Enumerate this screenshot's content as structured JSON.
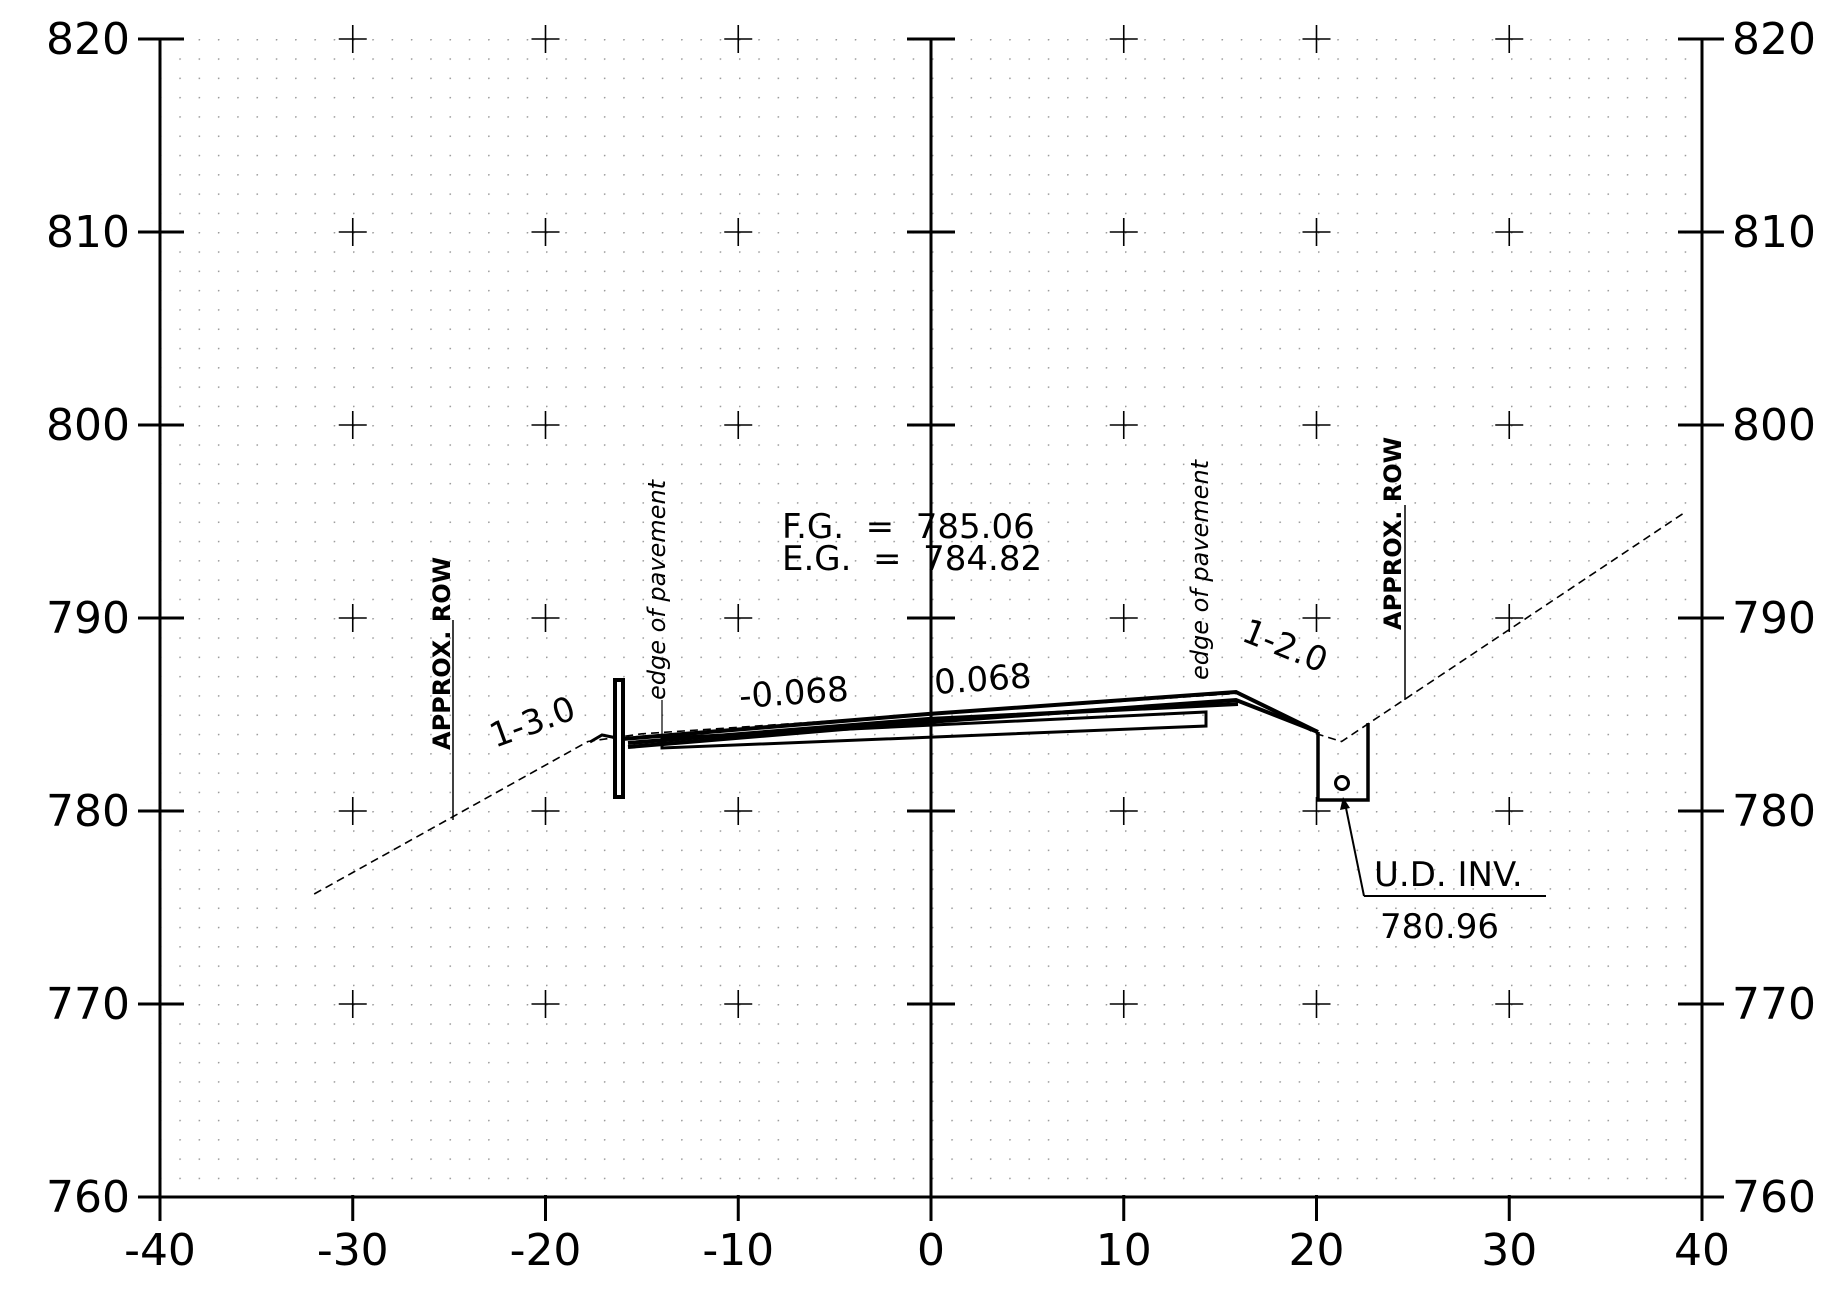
{
  "chart_data": {
    "type": "cross_section",
    "title": "",
    "xlabel": "",
    "ylabel": "",
    "xlim": [
      -40,
      40
    ],
    "ylim": [
      760,
      820
    ],
    "x_ticks": [
      "-40",
      "-30",
      "-20",
      "-10",
      "0",
      "10",
      "20",
      "30",
      "40"
    ],
    "y_ticks": [
      "760",
      "770",
      "780",
      "790",
      "800",
      "810",
      "820"
    ],
    "grid": "dotted, 1 ft spacing, plus markers every 10",
    "finished_grade_elevation": "F.G.  =  785.06",
    "existing_grade_elevation": "E.G.  =  784.82",
    "slopes": [
      "1-3.0",
      "-0.068",
      "0.068",
      "1-2.0"
    ],
    "edge_of_pavement_label": "edge of pavement",
    "row_label": "APPROX. ROW",
    "underdrain": {
      "label": "U.D. INV.",
      "value": "780.96"
    },
    "existing_ground": [
      {
        "x": -32,
        "y": 775.7
      },
      {
        "x": -17.8,
        "y": 783.6
      },
      {
        "x": -15,
        "y": 784.0
      },
      {
        "x": 16,
        "y": 786.1
      },
      {
        "x": 20,
        "y": 784.0
      },
      {
        "x": 21.3,
        "y": 783.6
      },
      {
        "x": 39,
        "y": 795.4
      }
    ],
    "finished_profile": [
      {
        "x": -16,
        "y": 783.8
      },
      {
        "x": 0,
        "y": 784.9
      },
      {
        "x": 16,
        "y": 786.0
      },
      {
        "x": 20,
        "y": 784.0
      }
    ]
  }
}
